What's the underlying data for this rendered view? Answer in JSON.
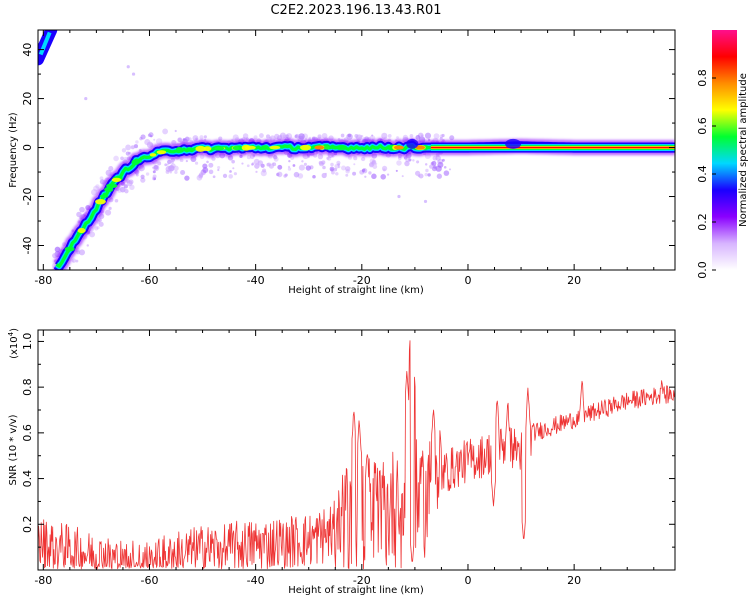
{
  "title": "C2E2.2023.196.13.43.R01",
  "chart_data": [
    {
      "type": "heatmap",
      "xlabel": "Height of straight line (km)",
      "ylabel": "Frequency (Hz)",
      "xlim": [
        -81,
        39
      ],
      "ylim": [
        -50,
        48
      ],
      "x_ticks": [
        -80,
        -60,
        -40,
        -20,
        0,
        20
      ],
      "y_ticks": [
        -40,
        -20,
        0,
        20,
        40
      ],
      "colorbar": {
        "label": "Normalized spectral amplitude",
        "range": [
          0,
          1
        ],
        "ticks": [
          "0.0",
          "0.2",
          "0.4",
          "0.6",
          "0.8"
        ],
        "colors": [
          "#ffffff",
          "#d7b4ff",
          "#8a00ff",
          "#1a00ff",
          "#00d8ff",
          "#00ff30",
          "#ffff00",
          "#ff8c00",
          "#ff0000",
          "#ff0f8c"
        ]
      },
      "ridge_path": [
        {
          "x": -80,
          "y": 46
        },
        {
          "x": -78,
          "y": 40
        },
        {
          "x": -77,
          "y": -48
        },
        {
          "x": -74,
          "y": -38
        },
        {
          "x": -71,
          "y": -28
        },
        {
          "x": -68,
          "y": -18
        },
        {
          "x": -65,
          "y": -10
        },
        {
          "x": -62,
          "y": -5
        },
        {
          "x": -58,
          "y": -2
        },
        {
          "x": -55,
          "y": -1
        },
        {
          "x": -50,
          "y": -0.5
        },
        {
          "x": -40,
          "y": 0
        },
        {
          "x": -30,
          "y": 0
        },
        {
          "x": -20,
          "y": 0
        },
        {
          "x": -10,
          "y": 0
        },
        {
          "x": 0,
          "y": 0
        },
        {
          "x": 10,
          "y": 0.5
        },
        {
          "x": 20,
          "y": 0
        },
        {
          "x": 39,
          "y": 0
        }
      ]
    },
    {
      "type": "line",
      "xlabel": "Height of straight line (km)",
      "ylabel": "SNR (10 * v/v)",
      "scale_label_prefix": "(x10",
      "scale_label_exp": "4",
      "scale_label_suffix": ")",
      "xlim": [
        -81,
        39
      ],
      "ylim": [
        0,
        1.05
      ],
      "x_ticks": [
        -80,
        -60,
        -40,
        -20,
        0,
        20
      ],
      "y_ticks": [
        0.2,
        0.4,
        0.6,
        0.8,
        1.0
      ],
      "y_tick_labels": [
        "0.2",
        "0.4",
        "0.6",
        "0.8",
        "1.0"
      ],
      "series": [
        {
          "color": "#ee3333",
          "trend": [
            {
              "x": -81,
              "y": 0.12
            },
            {
              "x": -75,
              "y": 0.09
            },
            {
              "x": -70,
              "y": 0.06
            },
            {
              "x": -65,
              "y": 0.04
            },
            {
              "x": -60,
              "y": 0.04
            },
            {
              "x": -55,
              "y": 0.07
            },
            {
              "x": -50,
              "y": 0.09
            },
            {
              "x": -45,
              "y": 0.1
            },
            {
              "x": -40,
              "y": 0.11
            },
            {
              "x": -35,
              "y": 0.12
            },
            {
              "x": -30,
              "y": 0.13
            },
            {
              "x": -25,
              "y": 0.17
            },
            {
              "x": -20,
              "y": 0.24
            },
            {
              "x": -15,
              "y": 0.26
            },
            {
              "x": -12,
              "y": 0.3
            },
            {
              "x": -8,
              "y": 0.32
            },
            {
              "x": -5,
              "y": 0.42
            },
            {
              "x": 0,
              "y": 0.48
            },
            {
              "x": 3,
              "y": 0.5
            },
            {
              "x": 7,
              "y": 0.55
            },
            {
              "x": 10,
              "y": 0.52
            },
            {
              "x": 12,
              "y": 0.6
            },
            {
              "x": 15,
              "y": 0.62
            },
            {
              "x": 20,
              "y": 0.66
            },
            {
              "x": 25,
              "y": 0.7
            },
            {
              "x": 30,
              "y": 0.74
            },
            {
              "x": 35,
              "y": 0.76
            },
            {
              "x": 39,
              "y": 0.77
            }
          ],
          "peaks": [
            {
              "x": -21.5,
              "y": 0.71
            },
            {
              "x": -20.5,
              "y": 0.66
            },
            {
              "x": -19,
              "y": 0.52
            },
            {
              "x": -11.5,
              "y": 0.88
            },
            {
              "x": -10.8,
              "y": 1.05
            },
            {
              "x": -10.2,
              "y": 0.9
            },
            {
              "x": -6.5,
              "y": 0.72
            },
            {
              "x": 5.5,
              "y": 0.76
            },
            {
              "x": 7.5,
              "y": 0.74
            },
            {
              "x": 11.3,
              "y": 0.8
            },
            {
              "x": 21.5,
              "y": 0.84
            },
            {
              "x": 36.5,
              "y": 0.85
            }
          ],
          "dips": [
            {
              "x": -10.5,
              "y": 0.02
            },
            {
              "x": 4.8,
              "y": 0.28
            },
            {
              "x": 10.5,
              "y": 0.12
            }
          ]
        }
      ]
    }
  ]
}
